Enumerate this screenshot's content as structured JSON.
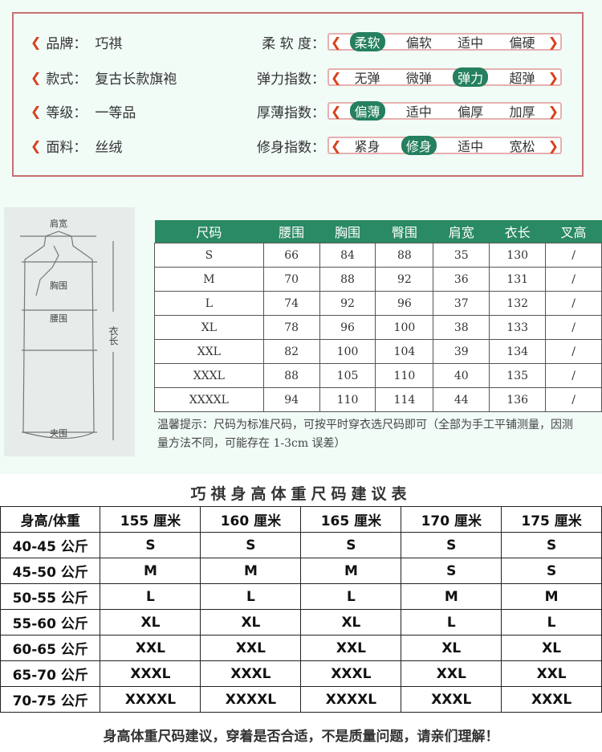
{
  "specs": [
    {
      "label": "品牌：",
      "value": "巧祺"
    },
    {
      "label": "款式：",
      "value": "复古长款旗袍"
    },
    {
      "label": "等级：",
      "value": "一等品"
    },
    {
      "label": "面料：",
      "value": "丝绒"
    }
  ],
  "indices": [
    {
      "label": "柔 软 度：",
      "options": [
        "柔软",
        "偏软",
        "适中",
        "偏硬"
      ],
      "selected": 0
    },
    {
      "label": "弹力指数：",
      "options": [
        "无弹",
        "微弹",
        "弹力",
        "超弹"
      ],
      "selected": 2
    },
    {
      "label": "厚薄指数：",
      "options": [
        "偏薄",
        "适中",
        "偏厚",
        "加厚"
      ],
      "selected": 0
    },
    {
      "label": "修身指数：",
      "options": [
        "紧身",
        "修身",
        "适中",
        "宽松"
      ],
      "selected": 1
    }
  ],
  "diagram": {
    "shoulder": "肩宽",
    "chest": "胸围",
    "waist": "腰围",
    "hem": "夹围",
    "length": "衣长"
  },
  "size_table": {
    "headers": [
      "尺码",
      "腰围",
      "胸围",
      "臀围",
      "肩宽",
      "衣长",
      "叉高"
    ],
    "rows": [
      [
        "S",
        "66",
        "84",
        "88",
        "35",
        "130",
        "/"
      ],
      [
        "M",
        "70",
        "88",
        "92",
        "36",
        "131",
        "/"
      ],
      [
        "L",
        "74",
        "92",
        "96",
        "37",
        "132",
        "/"
      ],
      [
        "XL",
        "78",
        "96",
        "100",
        "38",
        "133",
        "/"
      ],
      [
        "XXL",
        "82",
        "100",
        "104",
        "39",
        "134",
        "/"
      ],
      [
        "XXXL",
        "88",
        "105",
        "110",
        "40",
        "135",
        "/"
      ],
      [
        "XXXXL",
        "94",
        "110",
        "114",
        "44",
        "136",
        "/"
      ]
    ]
  },
  "note": "温馨提示：尺码为标准尺码，可按平时穿衣选尺码即可（全部为手工平铺测量，因测量方法不同，可能存在 1-3cm 误差）",
  "rec_title": "巧祺身高体重尺码建议表",
  "rec_table": {
    "headers": [
      "身高/体重",
      "155 厘米",
      "160 厘米",
      "165 厘米",
      "170 厘米",
      "175 厘米"
    ],
    "rows": [
      [
        "40-45 公斤",
        "S",
        "S",
        "S",
        "S",
        "S"
      ],
      [
        "45-50 公斤",
        "M",
        "M",
        "M",
        "S",
        "S"
      ],
      [
        "50-55 公斤",
        "L",
        "L",
        "L",
        "M",
        "M"
      ],
      [
        "55-60 公斤",
        "XL",
        "XL",
        "XL",
        "L",
        "L"
      ],
      [
        "60-65 公斤",
        "XXL",
        "XXL",
        "XXL",
        "XL",
        "XL"
      ],
      [
        "65-70 公斤",
        "XXXL",
        "XXXL",
        "XXXL",
        "XXL",
        "XXL"
      ],
      [
        "70-75 公斤",
        "XXXXL",
        "XXXXL",
        "XXXXL",
        "XXXL",
        "XXXL"
      ]
    ]
  },
  "footer": "身高体重尺码建议，穿着是否合适，不是质量问题，请亲们理解！",
  "colors": {
    "green": "#2a8a64",
    "frame": "#c97070",
    "ornament": "#d8401c"
  }
}
